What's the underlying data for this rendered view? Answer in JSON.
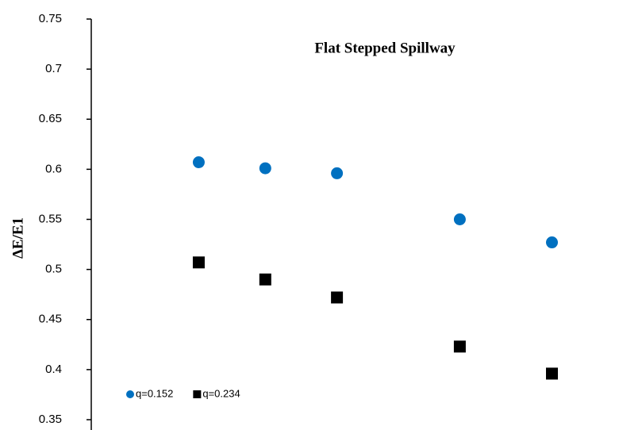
{
  "chart_data": {
    "type": "scatter",
    "title": "Flat Stepped Spillway",
    "y_label": "ΔE/E1",
    "xlim": [
      0,
      10
    ],
    "ylim": [
      0.35,
      0.75
    ],
    "yticks": [
      0.35,
      0.4,
      0.45,
      0.5,
      0.55,
      0.6,
      0.65,
      0.7,
      0.75
    ],
    "grid": false,
    "legend": "lower left",
    "series": [
      {
        "name": "q=0.152",
        "color": "#0070c0",
        "marker": "circle",
        "x": [
          2.1,
          3.4,
          4.8,
          7.2,
          9.0
        ],
        "values": [
          0.607,
          0.601,
          0.596,
          0.55,
          0.527
        ]
      },
      {
        "name": "q=0.234",
        "color": "#000000",
        "marker": "square",
        "x": [
          2.1,
          3.4,
          4.8,
          7.2,
          9.0
        ],
        "values": [
          0.507,
          0.49,
          0.472,
          0.423,
          0.396
        ]
      }
    ]
  }
}
